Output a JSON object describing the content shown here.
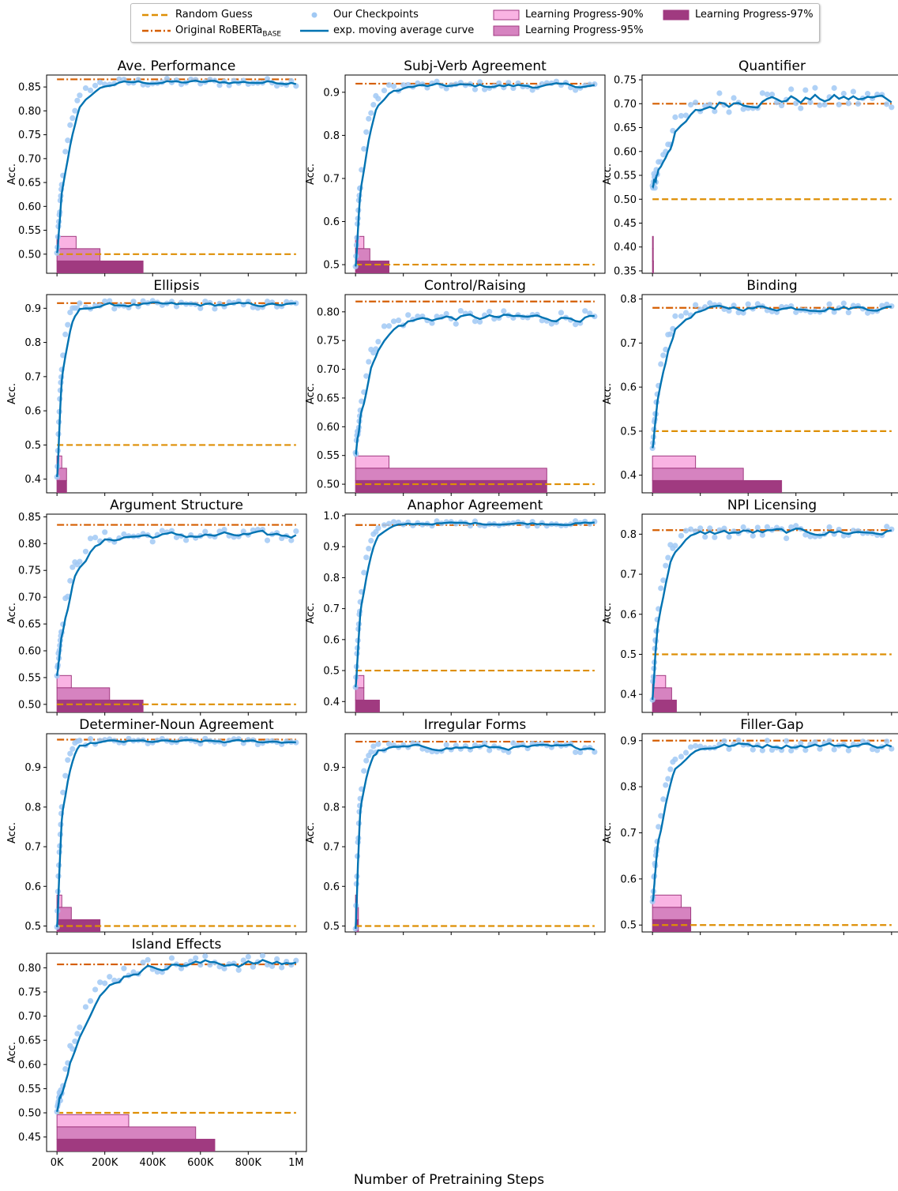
{
  "figure": {
    "x_axis_label": "Number of Pretraining Steps",
    "y_axis_label": "Acc.",
    "x_tick_labels": [
      "0K",
      "200K",
      "400K",
      "600K",
      "800K",
      "1M"
    ]
  },
  "legend": {
    "items": [
      {
        "key": "random",
        "label": "Random Guess",
        "sub": ""
      },
      {
        "key": "roberta",
        "label": "Original RoBERTa",
        "sub": "BASE"
      },
      {
        "key": "checkpoints",
        "label": "Our Checkpoints",
        "sub": ""
      },
      {
        "key": "ema",
        "label": "exp. moving average curve",
        "sub": ""
      },
      {
        "key": "lp90",
        "label": "Learning Progress-90%",
        "sub": ""
      },
      {
        "key": "lp95",
        "label": "Learning Progress-95%",
        "sub": ""
      },
      {
        "key": "lp97",
        "label": "Learning Progress-97%",
        "sub": ""
      }
    ]
  },
  "colors": {
    "random": "#de8f05",
    "roberta": "#d55e00",
    "checkpoints": "#a1c9f4",
    "ema": "#0173b2",
    "lp90": "#f9b3e3",
    "lp95": "#d683c0",
    "lp97": "#a03a80",
    "lp_edge": "#a03a80"
  },
  "chart_data": [
    {
      "type": "line",
      "title": "Ave. Performance",
      "ylim": [
        0.46,
        0.875
      ],
      "yticks": [
        0.5,
        0.55,
        0.6,
        0.65,
        0.7,
        0.75,
        0.8,
        0.85
      ],
      "roberta": 0.866,
      "random": 0.5,
      "final": 0.86,
      "start": 0.5,
      "rate": 0.025,
      "noise": 0.004,
      "lp": [
        80,
        180,
        360
      ]
    },
    {
      "type": "line",
      "title": "Subj-Verb Agreement",
      "ylim": [
        0.48,
        0.94
      ],
      "yticks": [
        0.5,
        0.6,
        0.7,
        0.8,
        0.9
      ],
      "roberta": 0.92,
      "random": 0.5,
      "final": 0.915,
      "start": 0.5,
      "rate": 0.03,
      "noise": 0.005,
      "lp": [
        35,
        60,
        140
      ]
    },
    {
      "type": "line",
      "title": "Quantifier",
      "ylim": [
        0.345,
        0.76
      ],
      "yticks": [
        0.35,
        0.4,
        0.45,
        0.5,
        0.55,
        0.6,
        0.65,
        0.7,
        0.75
      ],
      "roberta": 0.7,
      "random": 0.5,
      "final": 0.71,
      "start": 0.52,
      "rate": 0.012,
      "noise": 0.012,
      "lp": [
        2,
        3,
        4
      ]
    },
    {
      "type": "line",
      "title": "Ellipsis",
      "ylim": [
        0.36,
        0.94
      ],
      "yticks": [
        0.4,
        0.5,
        0.6,
        0.7,
        0.8,
        0.9
      ],
      "roberta": 0.915,
      "random": 0.5,
      "final": 0.91,
      "start": 0.4,
      "rate": 0.05,
      "noise": 0.006,
      "lp": [
        20,
        40,
        40
      ]
    },
    {
      "type": "line",
      "title": "Control/Raising",
      "ylim": [
        0.485,
        0.83
      ],
      "yticks": [
        0.5,
        0.55,
        0.6,
        0.65,
        0.7,
        0.75,
        0.8
      ],
      "roberta": 0.818,
      "random": 0.5,
      "final": 0.79,
      "start": 0.55,
      "rate": 0.02,
      "noise": 0.006,
      "lp": [
        140,
        800,
        800
      ]
    },
    {
      "type": "line",
      "title": "Binding",
      "ylim": [
        0.36,
        0.81
      ],
      "yticks": [
        0.4,
        0.5,
        0.6,
        0.7,
        0.8
      ],
      "roberta": 0.78,
      "random": 0.5,
      "final": 0.78,
      "start": 0.45,
      "rate": 0.025,
      "noise": 0.006,
      "lp": [
        180,
        380,
        540
      ]
    },
    {
      "type": "line",
      "title": "Argument Structure",
      "ylim": [
        0.485,
        0.855
      ],
      "yticks": [
        0.5,
        0.55,
        0.6,
        0.65,
        0.7,
        0.75,
        0.8,
        0.85
      ],
      "roberta": 0.835,
      "random": 0.5,
      "final": 0.815,
      "start": 0.56,
      "rate": 0.02,
      "noise": 0.006,
      "lp": [
        60,
        220,
        360
      ]
    },
    {
      "type": "line",
      "title": "Anaphor Agreement",
      "ylim": [
        0.365,
        1.005
      ],
      "yticks": [
        0.4,
        0.5,
        0.6,
        0.7,
        0.8,
        0.9,
        1.0
      ],
      "roberta": 0.97,
      "random": 0.5,
      "final": 0.975,
      "start": 0.45,
      "rate": 0.035,
      "noise": 0.004,
      "lp": [
        35,
        35,
        100
      ]
    },
    {
      "type": "line",
      "title": "NPI Licensing",
      "ylim": [
        0.355,
        0.85
      ],
      "yticks": [
        0.4,
        0.5,
        0.6,
        0.7,
        0.8
      ],
      "roberta": 0.81,
      "random": 0.5,
      "final": 0.805,
      "start": 0.4,
      "rate": 0.03,
      "noise": 0.008,
      "lp": [
        55,
        80,
        100
      ]
    },
    {
      "type": "line",
      "title": "Determiner-Noun Agreement",
      "ylim": [
        0.485,
        0.985
      ],
      "yticks": [
        0.5,
        0.6,
        0.7,
        0.8,
        0.9
      ],
      "roberta": 0.97,
      "random": 0.5,
      "final": 0.965,
      "start": 0.5,
      "rate": 0.05,
      "noise": 0.004,
      "lp": [
        20,
        60,
        180
      ]
    },
    {
      "type": "line",
      "title": "Irregular Forms",
      "ylim": [
        0.485,
        0.985
      ],
      "yticks": [
        0.5,
        0.6,
        0.7,
        0.8,
        0.9
      ],
      "roberta": 0.965,
      "random": 0.5,
      "final": 0.95,
      "start": 0.5,
      "rate": 0.06,
      "noise": 0.006,
      "lp": [
        8,
        12,
        12
      ]
    },
    {
      "type": "line",
      "title": "Filler-Gap",
      "ylim": [
        0.485,
        0.915
      ],
      "yticks": [
        0.5,
        0.6,
        0.7,
        0.8,
        0.9
      ],
      "roberta": 0.9,
      "random": 0.5,
      "final": 0.89,
      "start": 0.55,
      "rate": 0.025,
      "noise": 0.006,
      "lp": [
        120,
        160,
        160
      ]
    },
    {
      "type": "line",
      "title": "Island Effects",
      "ylim": [
        0.42,
        0.83
      ],
      "yticks": [
        0.45,
        0.5,
        0.55,
        0.6,
        0.65,
        0.7,
        0.75,
        0.8
      ],
      "roberta": 0.807,
      "random": 0.5,
      "final": 0.81,
      "start": 0.5,
      "rate": 0.01,
      "noise": 0.008,
      "lp": [
        300,
        580,
        660
      ]
    }
  ]
}
